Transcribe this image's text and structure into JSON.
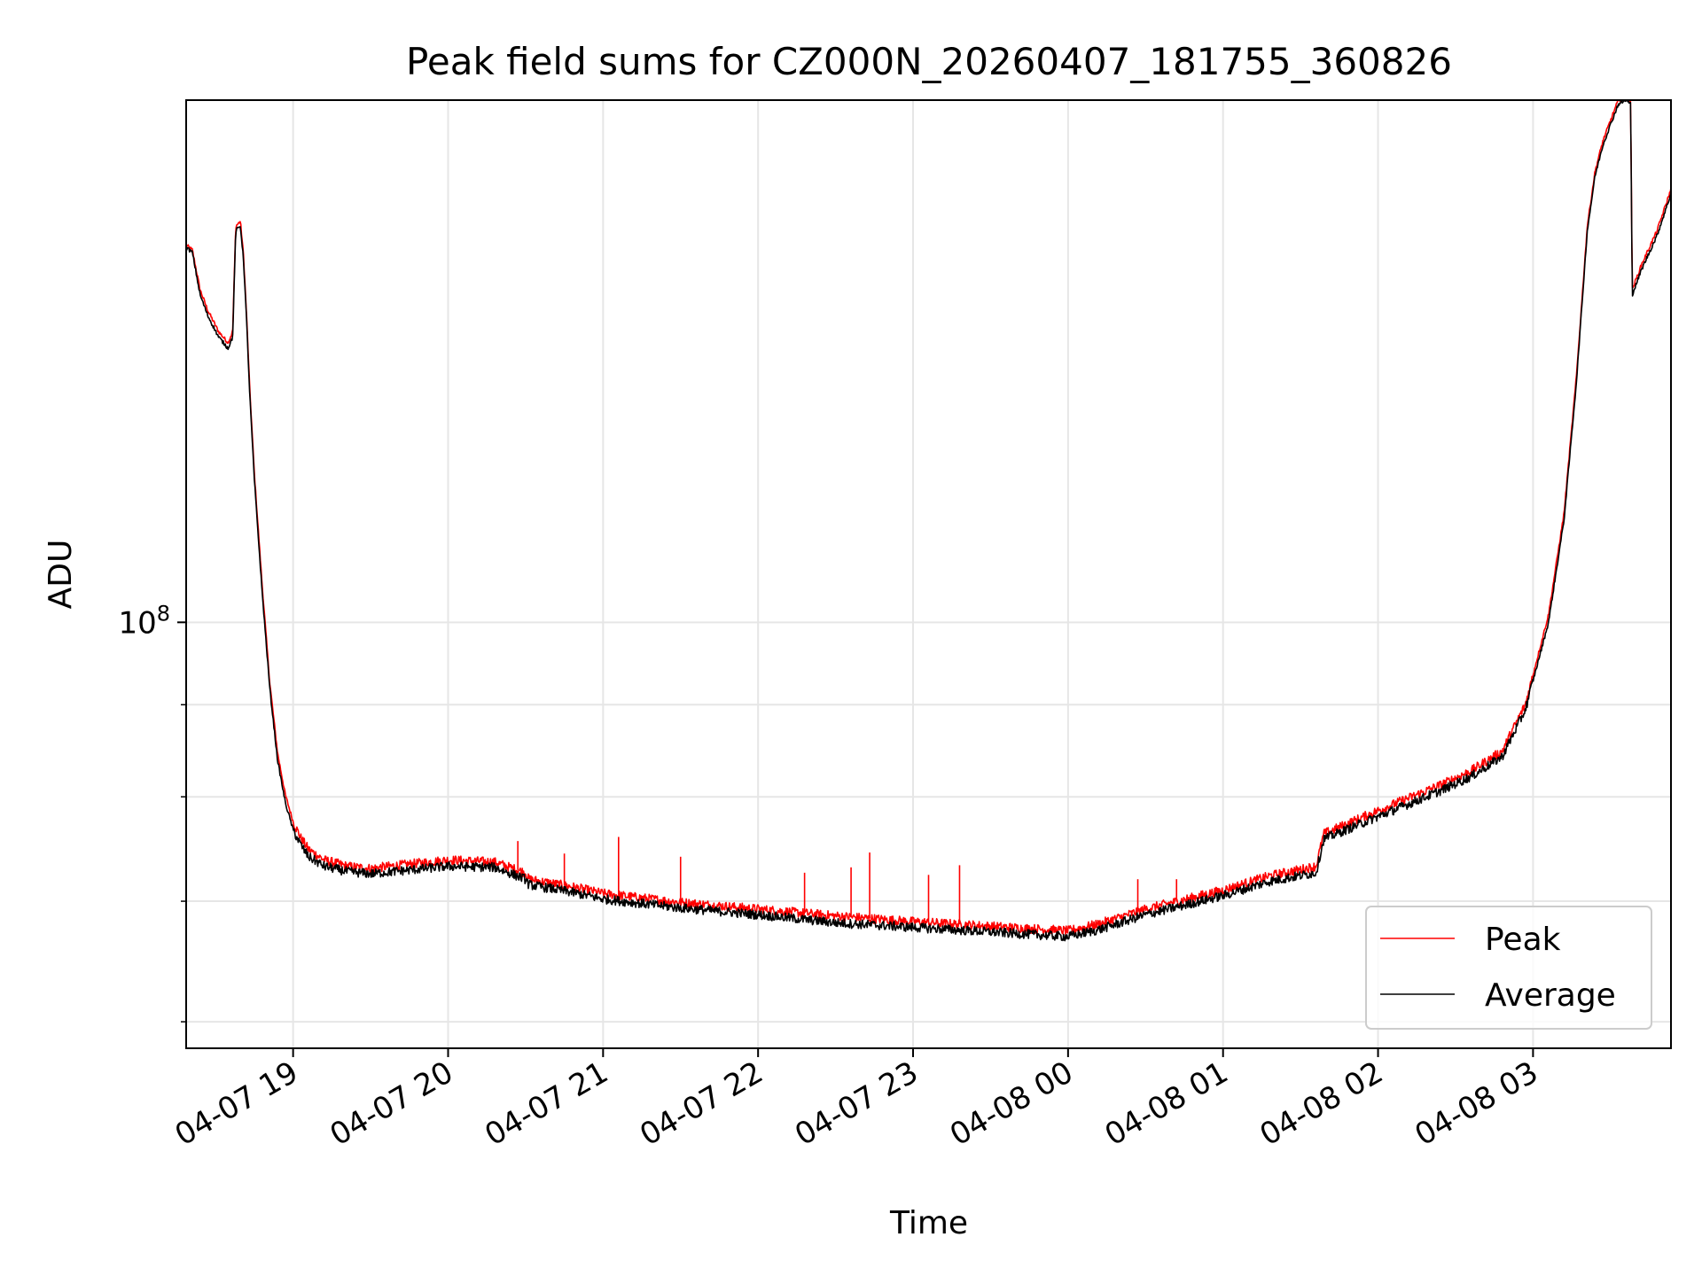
{
  "chart_data": {
    "type": "line",
    "title": "Peak field sums for CZ000N_20260407_181755_360826",
    "xlabel": "Time",
    "ylabel": "ADU",
    "yscale": "log",
    "grid": true,
    "legend_position": "lower-right",
    "x_unit": "hours since 2026-04-07 18:00",
    "xlim": [
      0.31,
      9.89
    ],
    "ylim": [
      58000000,
      195000000
    ],
    "x_ticks": [
      {
        "value": 1,
        "label": "04-07 19"
      },
      {
        "value": 2,
        "label": "04-07 20"
      },
      {
        "value": 3,
        "label": "04-07 21"
      },
      {
        "value": 4,
        "label": "04-07 22"
      },
      {
        "value": 5,
        "label": "04-07 23"
      },
      {
        "value": 6,
        "label": "04-08 00"
      },
      {
        "value": 7,
        "label": "04-08 01"
      },
      {
        "value": 8,
        "label": "04-08 02"
      },
      {
        "value": 9,
        "label": "04-08 03"
      }
    ],
    "y_major_ticks": [
      {
        "value": 100000000,
        "base": "10",
        "exp": "8"
      }
    ],
    "y_minor_ticks": [
      60000000,
      70000000,
      80000000,
      90000000
    ],
    "series": [
      {
        "name": "Peak",
        "color": "#ff0000",
        "x": [
          0.31,
          0.35,
          0.4,
          0.45,
          0.52,
          0.58,
          0.61,
          0.63,
          0.66,
          0.68,
          0.7,
          0.72,
          0.75,
          0.8,
          0.85,
          0.9,
          0.95,
          1.0,
          1.05,
          1.1,
          1.2,
          1.35,
          1.5,
          2.0,
          2.3,
          2.5,
          2.52,
          2.8,
          3.0,
          3.5,
          4.0,
          4.5,
          5.0,
          5.5,
          6.0,
          6.2,
          6.5,
          7.0,
          7.3,
          7.6,
          7.65,
          8.0,
          8.4,
          8.6,
          8.8,
          8.95,
          9.1,
          9.2,
          9.28,
          9.35,
          9.4,
          9.45,
          9.5,
          9.55,
          9.6,
          9.63,
          9.64,
          9.7,
          9.8,
          9.89
        ],
        "y": [
          162000000,
          161000000,
          153000000,
          149000000,
          145000000,
          143000000,
          145000000,
          166000000,
          167000000,
          160000000,
          148000000,
          135000000,
          121000000,
          105000000,
          92500000,
          84600000,
          80200000,
          77500000,
          75900000,
          74800000,
          73800000,
          73200000,
          73000000,
          73800000,
          73600000,
          72600000,
          72000000,
          71300000,
          70700000,
          69900000,
          69300000,
          68700000,
          68200000,
          67800000,
          67400000,
          68000000,
          69300000,
          71000000,
          72300000,
          73200000,
          76300000,
          78600000,
          81200000,
          82700000,
          84800000,
          90000000,
          101000000,
          115000000,
          137000000,
          166000000,
          178000000,
          185000000,
          190000000,
          195000000,
          196000000,
          195000000,
          153000000,
          158000000,
          165000000,
          174000000
        ]
      },
      {
        "name": "Average",
        "color": "#000000",
        "x": [
          0.31,
          0.35,
          0.4,
          0.45,
          0.52,
          0.58,
          0.61,
          0.63,
          0.66,
          0.68,
          0.7,
          0.72,
          0.75,
          0.8,
          0.85,
          0.9,
          0.95,
          1.0,
          1.05,
          1.1,
          1.2,
          1.35,
          1.5,
          2.0,
          2.3,
          2.5,
          2.52,
          2.8,
          3.0,
          3.5,
          4.0,
          4.5,
          5.0,
          5.5,
          6.0,
          6.2,
          6.5,
          7.0,
          7.3,
          7.6,
          7.65,
          8.0,
          8.4,
          8.6,
          8.8,
          8.95,
          9.1,
          9.2,
          9.28,
          9.35,
          9.4,
          9.45,
          9.5,
          9.55,
          9.6,
          9.63,
          9.64,
          9.7,
          9.8,
          9.89
        ],
        "y": [
          161500000,
          160500000,
          152000000,
          148000000,
          144000000,
          142000000,
          144000000,
          165000000,
          166000000,
          159000000,
          147000000,
          134000000,
          120000000,
          104000000,
          91800000,
          83800000,
          79400000,
          76700000,
          75200000,
          74100000,
          73200000,
          72700000,
          72500000,
          73200000,
          73100000,
          72000000,
          71500000,
          70800000,
          70200000,
          69400000,
          68800000,
          68100000,
          67700000,
          67300000,
          66900000,
          67500000,
          68800000,
          70500000,
          71800000,
          72600000,
          75800000,
          78000000,
          80600000,
          82100000,
          84200000,
          89400000,
          100000000,
          114000000,
          136000000,
          165000000,
          177000000,
          184000000,
          189000000,
          194000000,
          195000000,
          194000000,
          152000000,
          157000000,
          164000000,
          173000000
        ]
      }
    ],
    "annotations": [
      {
        "type": "spike",
        "series": "Peak",
        "x": 2.45,
        "y": 75600000
      },
      {
        "type": "spike",
        "series": "Peak",
        "x": 2.75,
        "y": 74400000
      },
      {
        "type": "spike",
        "series": "Peak",
        "x": 3.1,
        "y": 76000000
      },
      {
        "type": "spike",
        "series": "Peak",
        "x": 3.5,
        "y": 74100000
      },
      {
        "type": "spike",
        "series": "Peak",
        "x": 4.3,
        "y": 72600000
      },
      {
        "type": "spike",
        "series": "Peak",
        "x": 4.6,
        "y": 73100000
      },
      {
        "type": "spike",
        "series": "Peak",
        "x": 4.72,
        "y": 74500000
      },
      {
        "type": "spike",
        "series": "Peak",
        "x": 5.1,
        "y": 72400000
      },
      {
        "type": "spike",
        "series": "Peak",
        "x": 5.3,
        "y": 73300000
      },
      {
        "type": "spike",
        "series": "Peak",
        "x": 6.45,
        "y": 72000000
      },
      {
        "type": "spike",
        "series": "Peak",
        "x": 6.7,
        "y": 72000000
      }
    ]
  }
}
